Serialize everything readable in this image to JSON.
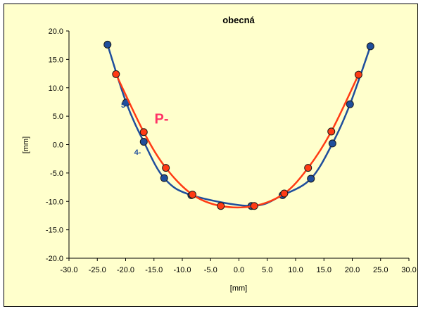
{
  "chart_data": {
    "type": "line",
    "title": "obecná",
    "xlabel": "[mm]",
    "ylabel": "[mm]",
    "xlim": [
      -30,
      30
    ],
    "ylim": [
      -20,
      20
    ],
    "x_ticks": [
      "-30.0",
      "-25.0",
      "-20.0",
      "-15.0",
      "-10.0",
      "-5.0",
      "0.0",
      "5.0",
      "10.0",
      "15.0",
      "20.0",
      "25.0",
      "30.0"
    ],
    "y_ticks": [
      "20.0",
      "15.0",
      "10.0",
      "5.0",
      "0.0",
      "-5.0",
      "-10.0",
      "-15.0",
      "-20.0"
    ],
    "grid": false,
    "annotations": [
      {
        "text": "5-",
        "x": -20.8,
        "y": 6.5,
        "color": "#1f4e9c"
      },
      {
        "text": "4-",
        "x": -18.5,
        "y": -1.8,
        "color": "#1f4e9c"
      },
      {
        "text": "P-",
        "x": -14.9,
        "y": 3.7,
        "color": "#ff3366"
      }
    ],
    "series": [
      {
        "color": "#1f4e9c",
        "x": [
          -23.2,
          -19.9,
          -16.8,
          -13.2,
          -8.4,
          2.2,
          7.7,
          12.7,
          16.5,
          19.6,
          23.2
        ],
        "y": [
          17.6,
          7.4,
          0.5,
          -5.9,
          -8.9,
          -10.8,
          -8.9,
          -6.0,
          0.2,
          7.1,
          17.3
        ]
      },
      {
        "color": "#ff3b14",
        "x": [
          -21.7,
          -16.8,
          -12.9,
          -8.2,
          -3.2,
          2.7,
          8.0,
          12.2,
          16.3,
          21.1
        ],
        "y": [
          12.4,
          2.2,
          -4.1,
          -8.8,
          -10.8,
          -10.8,
          -8.6,
          -4.1,
          2.3,
          12.3
        ]
      }
    ]
  }
}
